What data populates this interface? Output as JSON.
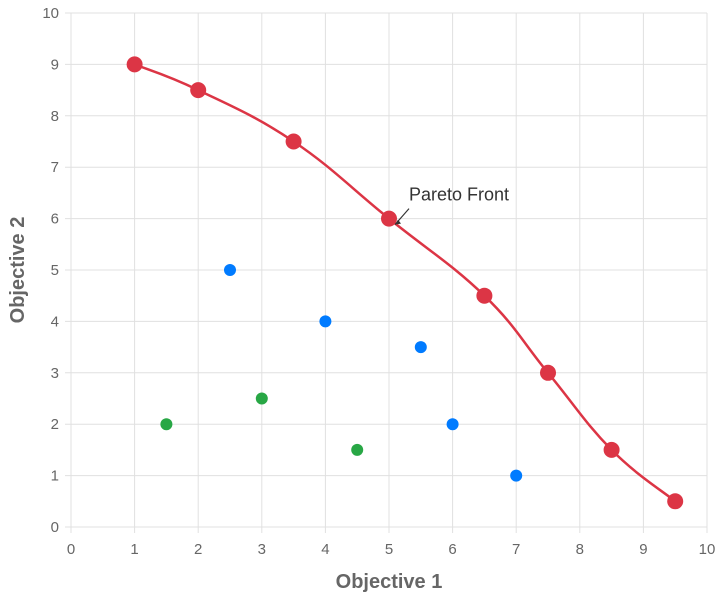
{
  "chart_data": {
    "type": "scatter",
    "title": "",
    "xlabel": "Objective 1",
    "ylabel": "Objective 2",
    "xlim": [
      0,
      10
    ],
    "ylim": [
      0,
      10
    ],
    "xticks": [
      "0",
      "1",
      "2",
      "3",
      "4",
      "5",
      "6",
      "7",
      "8",
      "9",
      "10"
    ],
    "yticks": [
      "0",
      "1",
      "2",
      "3",
      "4",
      "5",
      "6",
      "7",
      "8",
      "9",
      "10"
    ],
    "grid": true,
    "series": [
      {
        "color": "#dc3545",
        "line": true,
        "points": [
          [
            1,
            9
          ],
          [
            2,
            8.5
          ],
          [
            3.5,
            7.5
          ],
          [
            5,
            6
          ],
          [
            6.5,
            4.5
          ],
          [
            7.5,
            3
          ],
          [
            8.5,
            1.5
          ],
          [
            9.5,
            0.5
          ]
        ]
      },
      {
        "color": "#007bff",
        "line": false,
        "points": [
          [
            2.5,
            5
          ],
          [
            4,
            4
          ],
          [
            5.5,
            3.5
          ],
          [
            6,
            2
          ],
          [
            7,
            1
          ]
        ]
      },
      {
        "color": "#28a745",
        "line": false,
        "points": [
          [
            1.5,
            2
          ],
          [
            3,
            2.5
          ],
          [
            4.5,
            1.5
          ]
        ]
      }
    ],
    "annotations": [
      {
        "text": "Pareto Front",
        "x": 5,
        "y": 6
      }
    ]
  }
}
